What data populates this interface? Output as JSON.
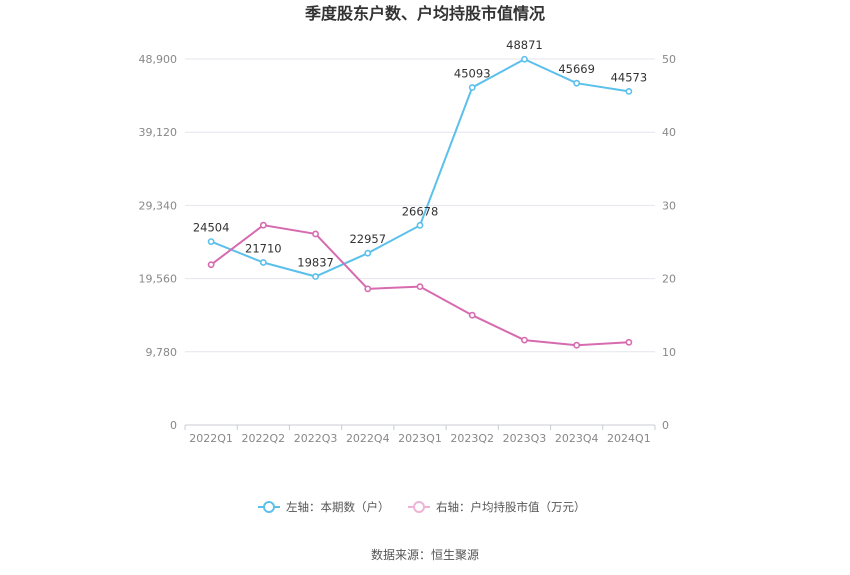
{
  "chart_data": {
    "type": "line",
    "title": "季度股东户数、户均持股市值情况",
    "categories": [
      "2022Q1",
      "2022Q2",
      "2022Q3",
      "2022Q4",
      "2023Q1",
      "2023Q2",
      "2023Q3",
      "2023Q4",
      "2024Q1"
    ],
    "left_axis": {
      "ylim": [
        0,
        48900
      ],
      "ticks": [
        "0",
        "9,780",
        "19,560",
        "29,340",
        "39,120",
        "48,900"
      ]
    },
    "right_axis": {
      "ylim": [
        0,
        50
      ],
      "ticks": [
        "0",
        "10",
        "20",
        "30",
        "40",
        "50"
      ]
    },
    "series": [
      {
        "name": "左轴：本期数（户）",
        "axis": "left",
        "color": "#5bc0eb",
        "values": [
          24504,
          21710,
          19837,
          22957,
          26678,
          45093,
          48871,
          45669,
          44573
        ],
        "labels": [
          "24504",
          "21710",
          "19837",
          "22957",
          "26678",
          "45093",
          "48871",
          "45669",
          "44573"
        ]
      },
      {
        "name": "右轴：户均持股市值（万元）",
        "axis": "right",
        "color": "#d66bb0",
        "values": [
          21.9,
          27.3,
          26.1,
          18.6,
          18.9,
          15.0,
          11.6,
          10.9,
          11.3
        ]
      }
    ],
    "grid": true,
    "legend_position": "bottom"
  },
  "footer": {
    "source": "数据来源：恒生聚源"
  },
  "legend_colors": {
    "left_light": "#b6e2f5",
    "right_light": "#eeb3d6"
  }
}
